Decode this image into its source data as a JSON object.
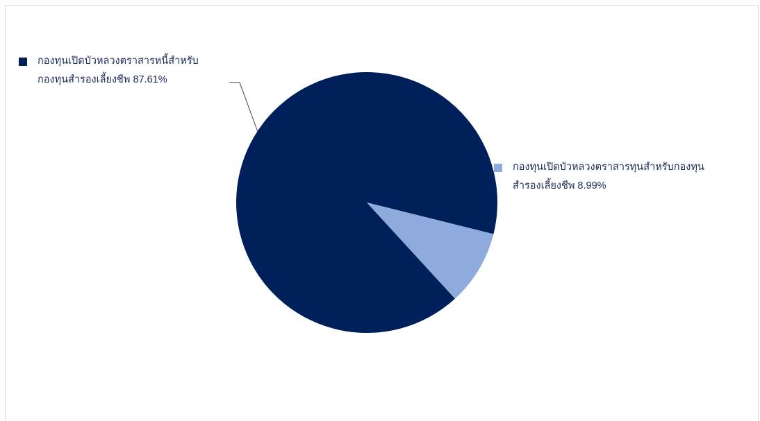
{
  "chart_data": {
    "type": "pie",
    "title": "",
    "slices": [
      {
        "name": "กองทุนเปิดบัวหลวงตราสารหนี้สำหรับกองทุนสำรองเลี้ยงชีพ",
        "value": 87.61,
        "label_line1": "กองทุนเปิดบัวหลวงตราสารหนี้สำหรับ",
        "label_line2": "กองทุนสำรองเลี้ยงชีพ 87.61%",
        "color": "#00205b"
      },
      {
        "name": "กองทุนเปิดบัวหลวงตราสารทุนสำหรับกองทุนสำรองเลี้ยงชีพ",
        "value": 8.99,
        "label_line1": "กองทุนเปิดบัวหลวงตราสารทุนสำหรับกองทุน",
        "label_line2": "สำรองเลี้ยงชีพ 8.99%",
        "color": "#8faadc"
      }
    ],
    "colors": {
      "border": "#d9d9d9",
      "leader_line": "#404040",
      "label_text": "#1a2a5a"
    }
  }
}
